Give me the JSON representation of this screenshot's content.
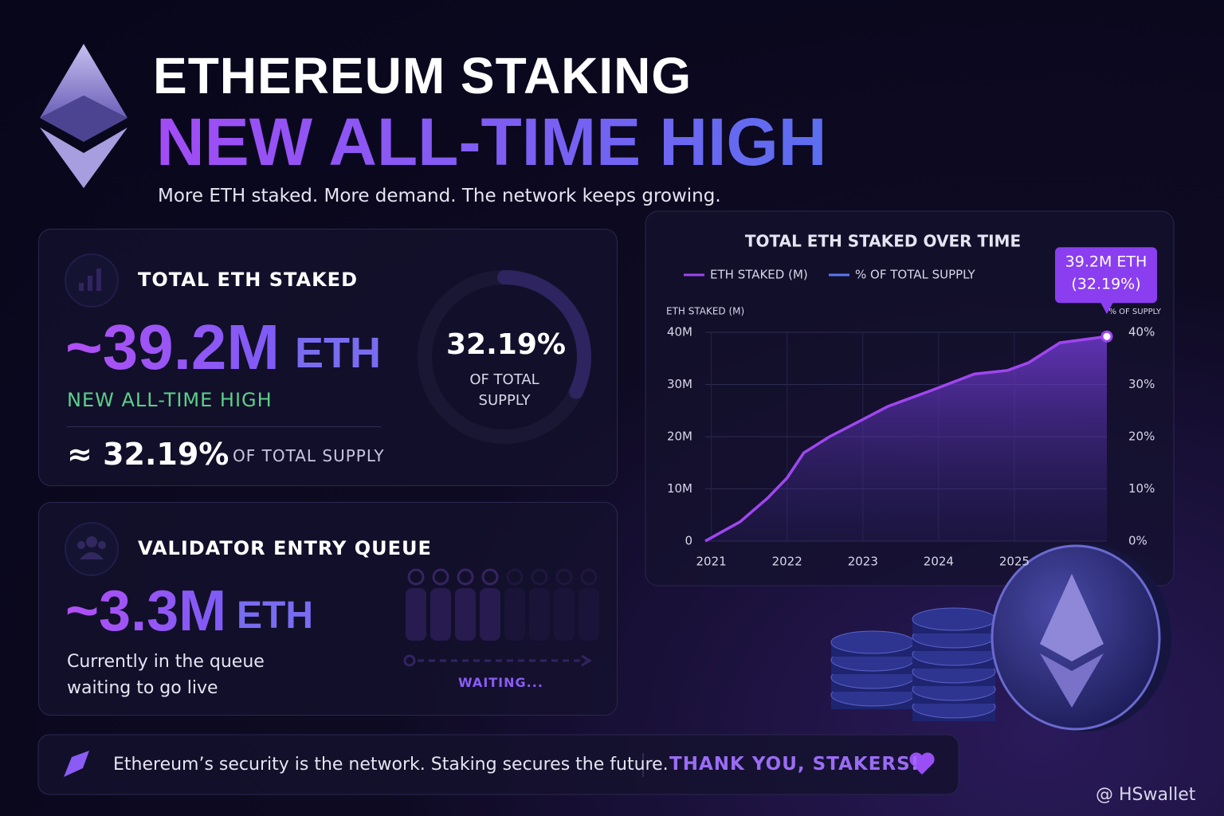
{
  "header": {
    "title": "ETHEREUM STAKING",
    "headline": "NEW ALL-TIME HIGH",
    "subtitle": "More ETH staked. More demand. The network keeps growing."
  },
  "staked_card": {
    "title": "TOTAL ETH STAKED",
    "value": "~39.2M",
    "unit": "ETH",
    "badge": "NEW ALL-TIME HIGH",
    "share": "≈ 32.19%",
    "share_label": "OF TOTAL SUPPLY"
  },
  "queue_card": {
    "title": "VALIDATOR ENTRY QUEUE",
    "value": "~3.3M",
    "unit": "ETH",
    "note": "Currently in the queue waiting to go live",
    "status": "WAITING..."
  },
  "footer": {
    "text": "Ethereum’s security is the network. Staking secures the future.",
    "cta": "THANK YOU, STAKERS!"
  },
  "watermark": "@ HSwallet",
  "chart_data": [
    {
      "type": "donut",
      "values": [
        32.19
      ],
      "value_labels": [
        "32.19%"
      ],
      "caption": "OF TOTAL SUPPLY",
      "color": "#7b5cf5"
    },
    {
      "type": "line",
      "title": "TOTAL ETH STAKED OVER TIME",
      "y_label": "ETH STAKED (M)",
      "y2_label": "% OF SUPPLY",
      "x": [
        2020.92,
        2021.38,
        2021.74,
        2022.0,
        2022.22,
        2022.56,
        2022.92,
        2023.33,
        2023.91,
        2024.47,
        2024.91,
        2025.19,
        2025.6,
        2026.22
      ],
      "xlim": [
        2020.92,
        2026.22
      ],
      "xticks": [
        2021,
        2022,
        2023,
        2024,
        2025
      ],
      "series": [
        {
          "name": "ETH STAKED (M)",
          "color": "#a046f0",
          "values": [
            0,
            3.7,
            8.2,
            12.1,
            16.9,
            20,
            22.7,
            25.8,
            28.9,
            32,
            32.7,
            34.2,
            38,
            39.2
          ]
        }
      ],
      "legend": [
        {
          "name": "ETH STAKED (M)",
          "color": "#a046f0"
        },
        {
          "name": "% OF TOTAL SUPPLY",
          "color": "#5a78f0"
        }
      ],
      "ylim": [
        0,
        40
      ],
      "yticks": [
        0,
        {
          "value": 10,
          "label": "10M"
        },
        {
          "value": 20,
          "label": "20M"
        },
        {
          "value": 30,
          "label": "30M"
        },
        {
          "value": 40,
          "label": "40M"
        }
      ],
      "y2lim": [
        0,
        40
      ],
      "y2ticks": [
        {
          "value": 0,
          "label": "0%"
        },
        {
          "value": 10,
          "label": "10%"
        },
        {
          "value": 20,
          "label": "20%"
        },
        {
          "value": 30,
          "label": "30%"
        },
        {
          "value": 40,
          "label": "40%"
        }
      ],
      "grid": true,
      "annotation": {
        "line1": "39.2M ETH",
        "line2": "(32.19%)"
      }
    }
  ]
}
